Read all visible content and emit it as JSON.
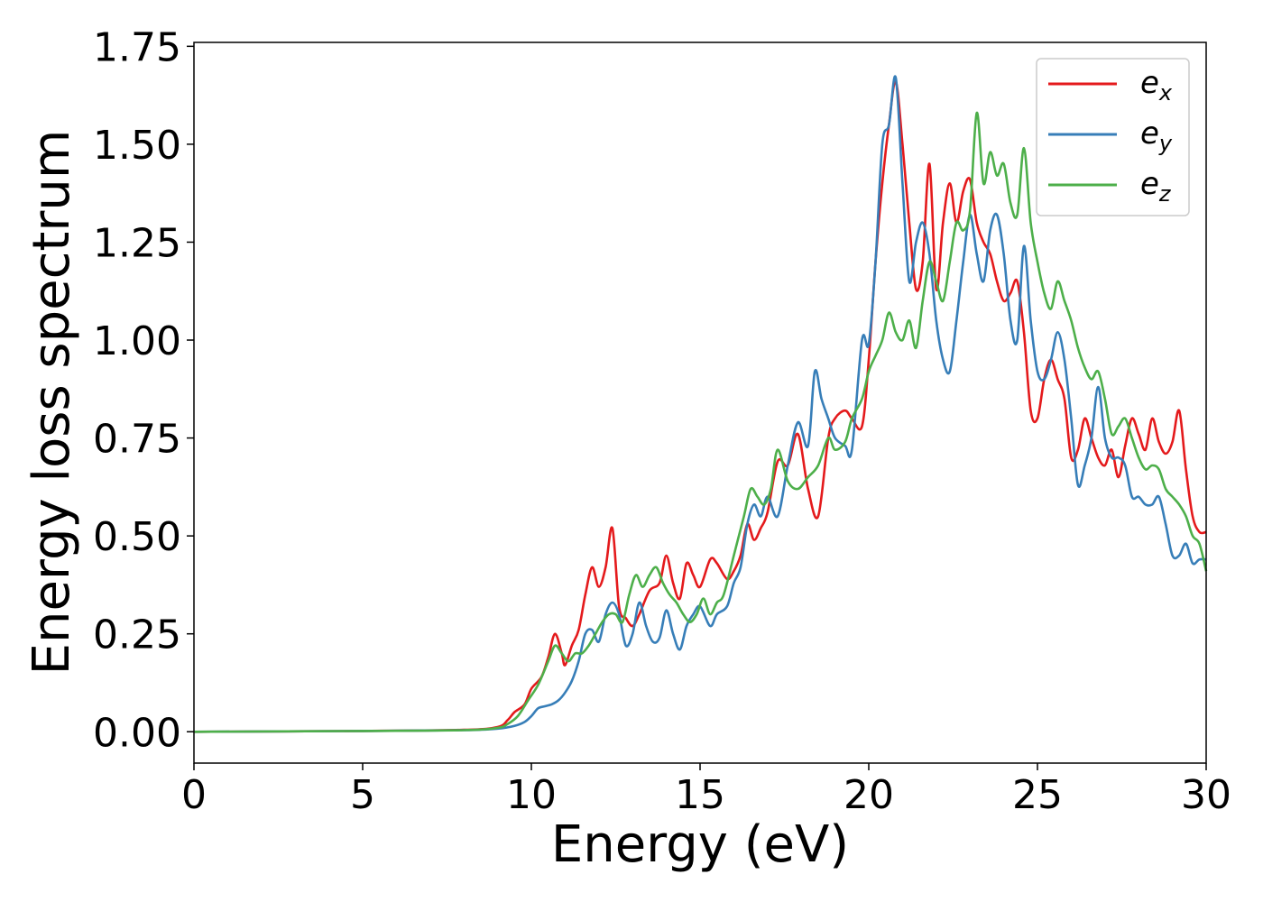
{
  "chart_data": {
    "type": "line",
    "xlabel": "Energy (eV)",
    "ylabel": "Energy loss spectrum",
    "xlim": [
      0,
      30
    ],
    "ylim": [
      -0.08,
      1.76
    ],
    "xticks": [
      0,
      5,
      10,
      15,
      20,
      25,
      30
    ],
    "xtick_labels": [
      "0",
      "5",
      "10",
      "15",
      "20",
      "25",
      "30"
    ],
    "yticks": [
      0,
      0.25,
      0.5,
      0.75,
      1.0,
      1.25,
      1.5,
      1.75
    ],
    "ytick_labels": [
      "0.00",
      "0.25",
      "0.50",
      "0.75",
      "1.00",
      "1.25",
      "1.50",
      "1.75"
    ],
    "grid": false,
    "legend_position": "top-right",
    "series": [
      {
        "name": "e_x",
        "legend_base": "e",
        "legend_sub": "x",
        "color": "#e41a1c",
        "x": [
          0,
          5,
          8,
          9,
          9.3,
          9.5,
          9.8,
          10.0,
          10.3,
          10.5,
          10.7,
          10.9,
          11.0,
          11.2,
          11.4,
          11.6,
          11.8,
          12.0,
          12.2,
          12.4,
          12.6,
          12.8,
          13.0,
          13.2,
          13.5,
          13.8,
          14.0,
          14.2,
          14.4,
          14.6,
          14.8,
          15.0,
          15.3,
          15.5,
          15.8,
          16.0,
          16.2,
          16.4,
          16.6,
          16.8,
          17.0,
          17.3,
          17.6,
          17.9,
          18.2,
          18.5,
          18.8,
          19.0,
          19.3,
          19.5,
          19.8,
          20.0,
          20.2,
          20.4,
          20.6,
          20.8,
          21.0,
          21.2,
          21.4,
          21.6,
          21.8,
          22.0,
          22.2,
          22.4,
          22.6,
          22.8,
          23.0,
          23.2,
          23.4,
          23.6,
          23.8,
          24.0,
          24.2,
          24.4,
          24.6,
          24.8,
          25.0,
          25.2,
          25.4,
          25.6,
          25.8,
          26.0,
          26.2,
          26.4,
          26.6,
          26.8,
          27.0,
          27.2,
          27.4,
          27.6,
          27.8,
          28.0,
          28.2,
          28.4,
          28.6,
          28.8,
          29.0,
          29.2,
          29.4,
          29.6,
          29.8,
          30.0
        ],
        "y": [
          0,
          0.002,
          0.005,
          0.012,
          0.03,
          0.05,
          0.07,
          0.11,
          0.14,
          0.19,
          0.25,
          0.2,
          0.17,
          0.22,
          0.26,
          0.35,
          0.42,
          0.37,
          0.42,
          0.52,
          0.32,
          0.29,
          0.27,
          0.3,
          0.36,
          0.38,
          0.45,
          0.38,
          0.34,
          0.43,
          0.4,
          0.37,
          0.44,
          0.43,
          0.39,
          0.41,
          0.45,
          0.53,
          0.49,
          0.52,
          0.56,
          0.69,
          0.68,
          0.76,
          0.62,
          0.55,
          0.75,
          0.8,
          0.82,
          0.8,
          0.78,
          0.95,
          1.2,
          1.4,
          1.55,
          1.66,
          1.5,
          1.3,
          1.13,
          1.2,
          1.45,
          1.13,
          1.3,
          1.4,
          1.3,
          1.38,
          1.41,
          1.3,
          1.25,
          1.22,
          1.15,
          1.1,
          1.12,
          1.15,
          1.02,
          0.82,
          0.8,
          0.9,
          0.95,
          0.9,
          0.85,
          0.7,
          0.72,
          0.8,
          0.75,
          0.7,
          0.68,
          0.72,
          0.65,
          0.73,
          0.8,
          0.76,
          0.72,
          0.8,
          0.74,
          0.71,
          0.74,
          0.82,
          0.67,
          0.55,
          0.51,
          0.51
        ]
      },
      {
        "name": "e_y",
        "legend_base": "e",
        "legend_sub": "y",
        "color": "#377eb8",
        "x": [
          0,
          5,
          8,
          9,
          9.5,
          9.8,
          10.0,
          10.2,
          10.4,
          10.6,
          10.8,
          11.0,
          11.2,
          11.4,
          11.6,
          11.8,
          12.0,
          12.2,
          12.4,
          12.6,
          12.8,
          13.0,
          13.2,
          13.4,
          13.6,
          13.8,
          14.0,
          14.2,
          14.4,
          14.6,
          14.8,
          15.0,
          15.3,
          15.5,
          15.8,
          16.0,
          16.2,
          16.4,
          16.6,
          16.8,
          17.0,
          17.3,
          17.6,
          17.9,
          18.2,
          18.4,
          18.6,
          18.8,
          19.0,
          19.3,
          19.5,
          19.8,
          20.0,
          20.2,
          20.4,
          20.6,
          20.8,
          21.0,
          21.2,
          21.4,
          21.6,
          21.8,
          22.0,
          22.2,
          22.4,
          22.6,
          22.8,
          23.0,
          23.2,
          23.4,
          23.6,
          23.8,
          24.0,
          24.2,
          24.4,
          24.6,
          24.8,
          25.0,
          25.2,
          25.4,
          25.6,
          25.8,
          26.0,
          26.2,
          26.4,
          26.6,
          26.8,
          27.0,
          27.2,
          27.4,
          27.6,
          27.8,
          28.0,
          28.2,
          28.4,
          28.6,
          28.8,
          29.0,
          29.2,
          29.4,
          29.6,
          29.8,
          30.0
        ],
        "y": [
          0,
          0.002,
          0.004,
          0.008,
          0.015,
          0.025,
          0.04,
          0.06,
          0.065,
          0.07,
          0.08,
          0.1,
          0.13,
          0.18,
          0.25,
          0.26,
          0.23,
          0.3,
          0.33,
          0.3,
          0.22,
          0.25,
          0.33,
          0.27,
          0.23,
          0.24,
          0.31,
          0.25,
          0.21,
          0.27,
          0.3,
          0.32,
          0.27,
          0.3,
          0.32,
          0.38,
          0.42,
          0.53,
          0.58,
          0.55,
          0.6,
          0.55,
          0.68,
          0.79,
          0.73,
          0.92,
          0.85,
          0.8,
          0.75,
          0.73,
          0.72,
          1.0,
          0.99,
          1.2,
          1.5,
          1.55,
          1.67,
          1.4,
          1.15,
          1.25,
          1.3,
          1.22,
          1.05,
          0.95,
          0.92,
          1.05,
          1.2,
          1.32,
          1.22,
          1.15,
          1.28,
          1.32,
          1.22,
          1.05,
          1.0,
          1.24,
          1.05,
          0.92,
          0.9,
          0.95,
          1.02,
          0.95,
          0.8,
          0.63,
          0.68,
          0.75,
          0.88,
          0.75,
          0.7,
          0.7,
          0.68,
          0.6,
          0.6,
          0.58,
          0.58,
          0.6,
          0.53,
          0.45,
          0.45,
          0.48,
          0.43,
          0.44,
          0.44
        ]
      },
      {
        "name": "e_z",
        "legend_base": "e",
        "legend_sub": "z",
        "color": "#4daf4a",
        "x": [
          0,
          5,
          8,
          9,
          9.3,
          9.6,
          9.9,
          10.2,
          10.5,
          10.7,
          10.9,
          11.1,
          11.3,
          11.5,
          11.7,
          11.9,
          12.1,
          12.3,
          12.5,
          12.7,
          12.9,
          13.1,
          13.3,
          13.5,
          13.7,
          13.9,
          14.1,
          14.3,
          14.5,
          14.7,
          14.9,
          15.1,
          15.3,
          15.5,
          15.7,
          16.0,
          16.3,
          16.5,
          16.7,
          16.9,
          17.1,
          17.3,
          17.6,
          17.9,
          18.2,
          18.5,
          18.8,
          19.0,
          19.3,
          19.5,
          19.8,
          20.0,
          20.2,
          20.4,
          20.6,
          20.8,
          21.0,
          21.2,
          21.4,
          21.6,
          21.8,
          22.0,
          22.2,
          22.4,
          22.6,
          22.8,
          23.0,
          23.2,
          23.4,
          23.6,
          23.8,
          24.0,
          24.2,
          24.4,
          24.6,
          24.8,
          25.0,
          25.2,
          25.4,
          25.6,
          25.8,
          26.0,
          26.2,
          26.4,
          26.6,
          26.8,
          27.0,
          27.2,
          27.4,
          27.6,
          27.8,
          28.0,
          28.2,
          28.4,
          28.6,
          28.8,
          29.0,
          29.2,
          29.4,
          29.6,
          29.8,
          30.0
        ],
        "y": [
          0,
          0.002,
          0.004,
          0.01,
          0.02,
          0.04,
          0.08,
          0.12,
          0.18,
          0.22,
          0.2,
          0.18,
          0.2,
          0.2,
          0.22,
          0.25,
          0.28,
          0.3,
          0.3,
          0.28,
          0.35,
          0.4,
          0.37,
          0.4,
          0.42,
          0.38,
          0.35,
          0.33,
          0.3,
          0.28,
          0.3,
          0.34,
          0.3,
          0.33,
          0.35,
          0.45,
          0.55,
          0.62,
          0.6,
          0.58,
          0.62,
          0.72,
          0.64,
          0.62,
          0.65,
          0.68,
          0.75,
          0.72,
          0.74,
          0.8,
          0.85,
          0.92,
          0.96,
          1.0,
          1.07,
          1.02,
          1.0,
          1.05,
          0.98,
          1.1,
          1.2,
          1.15,
          1.1,
          1.2,
          1.3,
          1.28,
          1.33,
          1.58,
          1.4,
          1.48,
          1.42,
          1.45,
          1.35,
          1.32,
          1.49,
          1.3,
          1.2,
          1.12,
          1.08,
          1.15,
          1.1,
          1.05,
          0.98,
          0.93,
          0.9,
          0.92,
          0.85,
          0.76,
          0.78,
          0.8,
          0.75,
          0.7,
          0.67,
          0.68,
          0.67,
          0.62,
          0.6,
          0.58,
          0.55,
          0.5,
          0.48,
          0.41
        ]
      }
    ]
  }
}
